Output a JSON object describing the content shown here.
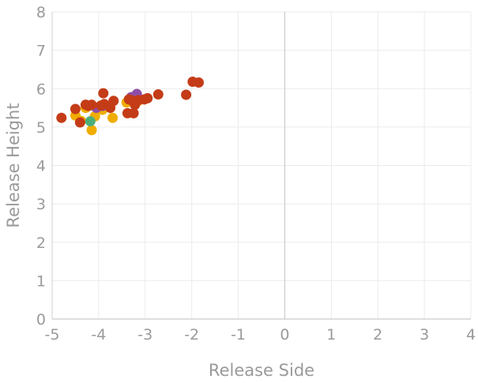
{
  "chart_data": {
    "type": "scatter",
    "xlabel": "Release Side",
    "ylabel": "Release Height",
    "xlim": [
      -5,
      4
    ],
    "ylim": [
      0,
      8
    ],
    "x_ticks": [
      -5,
      -4,
      -3,
      -2,
      -1,
      0,
      1,
      2,
      3,
      4
    ],
    "y_ticks": [
      0,
      1,
      2,
      3,
      4,
      5,
      6,
      7,
      8
    ],
    "x_tick_labels": [
      "-5",
      "-4",
      "-3",
      "-2",
      "-1",
      "0",
      "1",
      "2",
      "3",
      "4"
    ],
    "y_tick_labels": [
      "0",
      "1",
      "2",
      "3",
      "4",
      "5",
      "6",
      "7",
      "8"
    ],
    "grid": true,
    "legend": "none",
    "series": [
      {
        "color": "#f0ad00",
        "points": [
          {
            "x": -4.5,
            "y": 5.3
          },
          {
            "x": -4.38,
            "y": 5.16
          },
          {
            "x": -4.28,
            "y": 5.5
          },
          {
            "x": -4.15,
            "y": 4.92
          },
          {
            "x": -4.08,
            "y": 5.28
          },
          {
            "x": -3.92,
            "y": 5.45
          },
          {
            "x": -3.7,
            "y": 5.24
          },
          {
            "x": -3.4,
            "y": 5.64
          },
          {
            "x": -3.15,
            "y": 5.68
          }
        ]
      },
      {
        "color": "#8e4ea8",
        "points": [
          {
            "x": -4.05,
            "y": 5.5
          },
          {
            "x": -3.92,
            "y": 5.55
          },
          {
            "x": -3.3,
            "y": 5.78
          },
          {
            "x": -3.18,
            "y": 5.86
          }
        ]
      },
      {
        "color": "#4caf7a",
        "points": [
          {
            "x": -4.18,
            "y": 5.15
          }
        ]
      },
      {
        "color": "#c43c17",
        "points": [
          {
            "x": -4.8,
            "y": 5.24
          },
          {
            "x": -4.5,
            "y": 5.47
          },
          {
            "x": -4.4,
            "y": 5.12
          },
          {
            "x": -4.28,
            "y": 5.58
          },
          {
            "x": -4.22,
            "y": 5.55
          },
          {
            "x": -4.15,
            "y": 5.58
          },
          {
            "x": -3.95,
            "y": 5.56
          },
          {
            "x": -3.9,
            "y": 5.88
          },
          {
            "x": -3.88,
            "y": 5.6
          },
          {
            "x": -3.75,
            "y": 5.5
          },
          {
            "x": -3.68,
            "y": 5.68
          },
          {
            "x": -3.38,
            "y": 5.36
          },
          {
            "x": -3.35,
            "y": 5.72
          },
          {
            "x": -3.3,
            "y": 5.7
          },
          {
            "x": -3.25,
            "y": 5.36
          },
          {
            "x": -3.22,
            "y": 5.58
          },
          {
            "x": -3.15,
            "y": 5.7
          },
          {
            "x": -3.02,
            "y": 5.72
          },
          {
            "x": -2.95,
            "y": 5.75
          },
          {
            "x": -2.72,
            "y": 5.85
          },
          {
            "x": -2.12,
            "y": 5.84
          },
          {
            "x": -1.98,
            "y": 6.18
          },
          {
            "x": -1.85,
            "y": 6.16
          }
        ]
      }
    ]
  }
}
